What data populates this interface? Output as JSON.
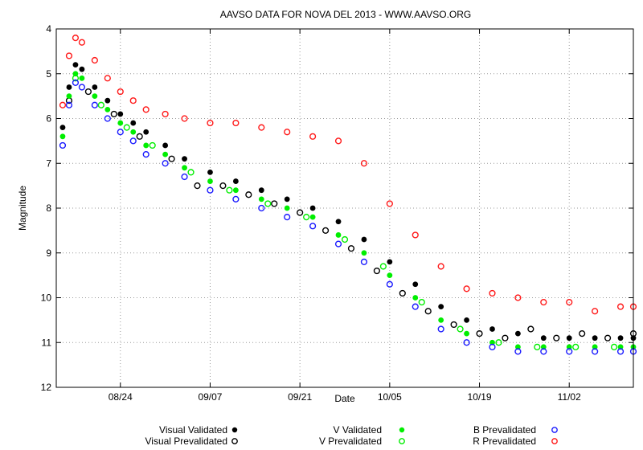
{
  "chart_data": {
    "type": "scatter",
    "title": "AAVSO DATA FOR NOVA DEL 2013 - WWW.AAVSO.ORG",
    "xlabel": "Date",
    "ylabel": "Magnitude",
    "ylim": [
      12,
      4
    ],
    "y_inverted": true,
    "xlim_days_since_aug14": [
      0,
      90
    ],
    "grid": true,
    "x_ticks": [
      {
        "label": "08/24",
        "day": 10
      },
      {
        "label": "09/07",
        "day": 24
      },
      {
        "label": "09/21",
        "day": 38
      },
      {
        "label": "10/05",
        "day": 52
      },
      {
        "label": "10/19",
        "day": 66
      },
      {
        "label": "11/02",
        "day": 80
      }
    ],
    "y_ticks": [
      4,
      5,
      6,
      7,
      8,
      9,
      10,
      11,
      12
    ],
    "legend": {
      "placement": "bottom",
      "entries": [
        {
          "label": "Visual Validated",
          "color": "#000000",
          "marker": "filled"
        },
        {
          "label": "Visual Prevalidated",
          "color": "#000000",
          "marker": "ring"
        },
        {
          "label": "V Validated",
          "color": "#00ee00",
          "marker": "filled"
        },
        {
          "label": "V Prevalidated",
          "color": "#00ee00",
          "marker": "ring"
        },
        {
          "label": "B Prevalidated",
          "color": "#1a1aff",
          "marker": "ring"
        },
        {
          "label": "R Prevalidated",
          "color": "#ff1a1a",
          "marker": "ring"
        }
      ]
    },
    "series": [
      {
        "name": "Visual Validated",
        "color": "#000000",
        "marker": "filled",
        "x": [
          1,
          2,
          3,
          4,
          6,
          8,
          10,
          12,
          14,
          17,
          20,
          24,
          28,
          32,
          36,
          40,
          44,
          48,
          52,
          56,
          60,
          64,
          68,
          72,
          76,
          80,
          84,
          88,
          90
        ],
        "y": [
          6.2,
          5.3,
          4.8,
          4.9,
          5.3,
          5.6,
          5.9,
          6.1,
          6.3,
          6.6,
          6.9,
          7.2,
          7.4,
          7.6,
          7.8,
          8.0,
          8.3,
          8.7,
          9.2,
          9.7,
          10.2,
          10.5,
          10.7,
          10.8,
          10.9,
          10.9,
          10.9,
          10.9,
          10.9
        ]
      },
      {
        "name": "Visual Prevalidated",
        "color": "#000000",
        "marker": "ring",
        "x": [
          2,
          5,
          9,
          13,
          18,
          22,
          26,
          30,
          34,
          38,
          42,
          46,
          50,
          54,
          58,
          62,
          66,
          70,
          74,
          78,
          82,
          86,
          90
        ],
        "y": [
          5.6,
          5.4,
          5.9,
          6.4,
          6.9,
          7.5,
          7.5,
          7.7,
          7.9,
          8.1,
          8.5,
          8.9,
          9.4,
          9.9,
          10.3,
          10.6,
          10.8,
          10.9,
          10.7,
          10.9,
          10.8,
          10.9,
          10.8
        ]
      },
      {
        "name": "V Validated",
        "color": "#00ee00",
        "marker": "filled",
        "x": [
          1,
          2,
          3,
          4,
          6,
          8,
          10,
          12,
          14,
          17,
          20,
          24,
          28,
          32,
          36,
          40,
          44,
          48,
          52,
          56,
          60,
          64,
          68,
          72,
          76,
          80,
          84,
          88,
          90
        ],
        "y": [
          6.4,
          5.5,
          5.0,
          5.1,
          5.5,
          5.8,
          6.1,
          6.3,
          6.6,
          6.8,
          7.1,
          7.4,
          7.6,
          7.8,
          8.0,
          8.2,
          8.6,
          9.0,
          9.5,
          10.0,
          10.5,
          10.8,
          11.0,
          11.1,
          11.1,
          11.1,
          11.1,
          11.1,
          11.1
        ]
      },
      {
        "name": "V Prevalidated",
        "color": "#00ee00",
        "marker": "ring",
        "x": [
          3,
          7,
          11,
          15,
          21,
          27,
          33,
          39,
          45,
          51,
          57,
          63,
          69,
          75,
          81,
          87
        ],
        "y": [
          5.1,
          5.7,
          6.2,
          6.6,
          7.2,
          7.6,
          7.9,
          8.2,
          8.7,
          9.3,
          10.1,
          10.7,
          11.0,
          11.1,
          11.1,
          11.1
        ]
      },
      {
        "name": "B Prevalidated",
        "color": "#1a1aff",
        "marker": "ring",
        "x": [
          1,
          2,
          3,
          4,
          6,
          8,
          10,
          12,
          14,
          17,
          20,
          24,
          28,
          32,
          36,
          40,
          44,
          48,
          52,
          56,
          60,
          64,
          68,
          72,
          76,
          80,
          84,
          88,
          90
        ],
        "y": [
          6.6,
          5.7,
          5.2,
          5.3,
          5.7,
          6.0,
          6.3,
          6.5,
          6.8,
          7.0,
          7.3,
          7.6,
          7.8,
          8.0,
          8.2,
          8.4,
          8.8,
          9.2,
          9.7,
          10.2,
          10.7,
          11.0,
          11.1,
          11.2,
          11.2,
          11.2,
          11.2,
          11.2,
          11.2
        ]
      },
      {
        "name": "R Prevalidated",
        "color": "#ff1a1a",
        "marker": "ring",
        "x": [
          1,
          2,
          3,
          4,
          6,
          8,
          10,
          12,
          14,
          17,
          20,
          24,
          28,
          32,
          36,
          40,
          44,
          48,
          52,
          56,
          60,
          64,
          68,
          72,
          76,
          80,
          84,
          88,
          90
        ],
        "y": [
          5.7,
          4.6,
          4.2,
          4.3,
          4.7,
          5.1,
          5.4,
          5.6,
          5.8,
          5.9,
          6.0,
          6.1,
          6.1,
          6.2,
          6.3,
          6.4,
          6.5,
          7.0,
          7.9,
          8.6,
          9.3,
          9.8,
          9.9,
          10.0,
          10.1,
          10.1,
          10.3,
          10.2,
          10.2
        ]
      }
    ]
  }
}
